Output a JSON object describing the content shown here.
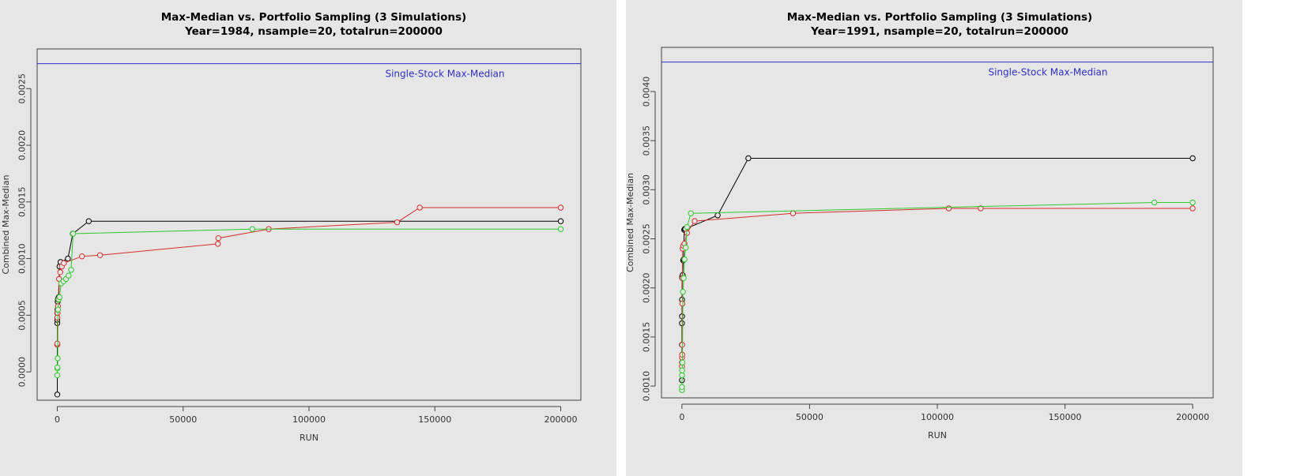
{
  "colors": {
    "panel_bg": "#e6e6e6",
    "black_series": "#000000",
    "red_series": "#d62d2d",
    "green_series": "#2bcc2b",
    "reference": "#2f2fc8"
  },
  "chart_data": [
    {
      "type": "line",
      "title": "Max-Median vs. Portfolio Sampling (3 Simulations)",
      "subtitle": "Year=1984, nsample=20, totalrun=200000",
      "xlabel": "RUN",
      "ylabel": "Combined Max-Median",
      "xlim": [
        -8000,
        208000
      ],
      "ylim": [
        -0.00025,
        0.00285
      ],
      "x_ticks": [
        0,
        50000,
        100000,
        150000,
        200000
      ],
      "x_tick_labels": [
        "0",
        "50000",
        "100000",
        "150000",
        "200000"
      ],
      "y_ticks": [
        0.0,
        0.0005,
        0.001,
        0.0015,
        0.002,
        0.0025
      ],
      "y_tick_labels": [
        "0.0000",
        "0.0005",
        "0.0010",
        "0.0015",
        "0.0020",
        "0.0025"
      ],
      "reference_line": {
        "value": 0.00272,
        "label": "Single-Stock Max-Median"
      },
      "series": [
        {
          "color": "black",
          "x": [
            0,
            10,
            20,
            40,
            80,
            150,
            250,
            400,
            600,
            900,
            1300,
            4200,
            6200,
            12500,
            200000
          ],
          "y": [
            -0.0002,
            0.00043,
            0.00046,
            0.00052,
            0.00055,
            0.00062,
            0.00064,
            0.00065,
            0.00066,
            0.00093,
            0.00097,
            0.001,
            0.00122,
            0.00133,
            0.00133
          ]
        },
        {
          "color": "red",
          "x": [
            0,
            20,
            50,
            100,
            180,
            260,
            400,
            700,
            1200,
            1800,
            2600,
            9800,
            17000,
            63800,
            64000,
            84000,
            135000,
            144000,
            200000
          ],
          "y": [
            0.00024,
            0.00025,
            0.00048,
            0.00052,
            0.00055,
            0.00058,
            0.00064,
            0.00082,
            0.00088,
            0.00093,
            0.00096,
            0.00102,
            0.00103,
            0.00113,
            0.00118,
            0.00126,
            0.00132,
            0.00145,
            0.00145
          ]
        },
        {
          "color": "green",
          "x": [
            0,
            30,
            80,
            150,
            300,
            500,
            900,
            1500,
            2500,
            3500,
            4500,
            5500,
            6300,
            77500,
            200000
          ],
          "y": [
            -3e-05,
            3e-05,
            4e-05,
            0.00012,
            0.00055,
            0.00064,
            0.00066,
            0.00078,
            0.0008,
            0.00082,
            0.00085,
            0.0009,
            0.00122,
            0.00126,
            0.00126
          ]
        }
      ]
    },
    {
      "type": "line",
      "title": "Max-Median vs. Portfolio Sampling (3 Simulations)",
      "subtitle": "Year=1991, nsample=20, totalrun=200000",
      "xlabel": "RUN",
      "ylabel": "Combined Max-Median",
      "xlim": [
        -8000,
        208000
      ],
      "ylim": [
        0.00088,
        0.00445
      ],
      "x_ticks": [
        0,
        50000,
        100000,
        150000,
        200000
      ],
      "x_tick_labels": [
        "0",
        "50000",
        "100000",
        "150000",
        "200000"
      ],
      "y_ticks": [
        0.001,
        0.0015,
        0.002,
        0.0025,
        0.003,
        0.0035,
        0.004
      ],
      "y_tick_labels": [
        "0.0010",
        "0.0015",
        "0.0020",
        "0.0025",
        "0.0030",
        "0.0035",
        "0.0040"
      ],
      "reference_line": {
        "value": 0.0043,
        "label": "Single-Stock Max-Median"
      },
      "series": [
        {
          "color": "black",
          "x": [
            0,
            10,
            20,
            40,
            60,
            100,
            150,
            200,
            300,
            500,
            700,
            900,
            1100,
            1300,
            14000,
            26000,
            200000
          ],
          "y": [
            0.00106,
            0.00142,
            0.00164,
            0.00171,
            0.00188,
            0.0021,
            0.00211,
            0.00212,
            0.00213,
            0.00228,
            0.00229,
            0.00259,
            0.0026,
            0.0026,
            0.00274,
            0.00332,
            0.00332
          ]
        },
        {
          "color": "red",
          "x": [
            0,
            20,
            40,
            80,
            120,
            160,
            200,
            300,
            500,
            1000,
            2000,
            5000,
            43500,
            104500,
            117000,
            200000
          ],
          "y": [
            0.0012,
            0.00124,
            0.00129,
            0.00132,
            0.00142,
            0.00184,
            0.0021,
            0.0024,
            0.00243,
            0.00245,
            0.00256,
            0.00268,
            0.00276,
            0.00281,
            0.00281,
            0.00281
          ]
        },
        {
          "color": "green",
          "x": [
            0,
            20,
            50,
            100,
            200,
            400,
            700,
            1000,
            1500,
            2000,
            3500,
            185000,
            200000
          ],
          "y": [
            0.00096,
            0.00099,
            0.00111,
            0.00116,
            0.00124,
            0.00196,
            0.0021,
            0.00229,
            0.00241,
            0.00262,
            0.00276,
            0.00287,
            0.00287
          ]
        }
      ]
    }
  ]
}
